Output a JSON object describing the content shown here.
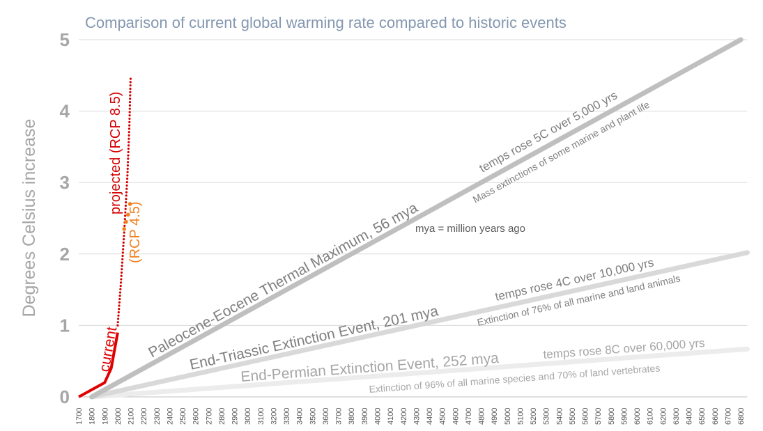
{
  "chart_data": {
    "type": "line",
    "title": "Comparison of current global warming rate compared to historic events",
    "ylabel": "Degrees Celsius increase",
    "xlabel": "",
    "xlim": [
      1700,
      6850
    ],
    "ylim": [
      0,
      5
    ],
    "yticks": [
      0,
      1,
      2,
      3,
      4,
      5
    ],
    "xticks_step": 100,
    "grid": true,
    "colors": {
      "title": "#8497b0",
      "axis_text": "#a6a6a6",
      "current": "#e00000",
      "rcp85": "#d40000",
      "rcp45": "#f08020",
      "paleocene": "#bfbfbf",
      "triassic": "#d9d9d9",
      "permian": "#ececec",
      "event_text": "#7f7f7f",
      "event_text_light": "#a6a6a6"
    },
    "series": [
      {
        "name": "current",
        "style": "solid",
        "x": [
          1700,
          1800,
          1900,
          1950,
          2000
        ],
        "y": [
          0,
          0.1,
          0.2,
          0.4,
          0.9
        ]
      },
      {
        "name": "projected (RCP 8.5)",
        "style": "dotted",
        "x": [
          2000,
          2025,
          2050,
          2075,
          2090,
          2100
        ],
        "y": [
          1.0,
          1.6,
          2.3,
          3.1,
          3.8,
          4.5
        ]
      },
      {
        "name": "(RCP 4.5)",
        "style": "dotted",
        "x": [
          2050,
          2065,
          2080,
          2095
        ],
        "y": [
          2.35,
          2.45,
          2.55,
          2.7
        ]
      },
      {
        "name": "Paleocene-Eocene Thermal Maximum, 56 mya",
        "style": "thick",
        "x": [
          1800,
          6800
        ],
        "y": [
          0,
          5
        ]
      },
      {
        "name": "End-Triassic Extinction Event, 201 mya",
        "style": "thick",
        "x": [
          1800,
          6850
        ],
        "y": [
          0,
          2.02
        ]
      },
      {
        "name": "End-Permian Extinction Event, 252 mya",
        "style": "thick",
        "x": [
          1800,
          6850
        ],
        "y": [
          0,
          0.67
        ]
      }
    ],
    "annotations": {
      "paleocene_rate": "temps rose 5C over 5,000 yrs",
      "paleocene_effect": "Mass extinctions of some marine and plant life",
      "triassic_rate": "temps rose 4C over 10,000 yrs",
      "triassic_effect": "Extinction of 76% of all marine and land animals",
      "permian_rate": "temps rose 8C over 60,000 yrs",
      "permian_effect": "Extinction of 96% of all marine species and 70% of land vertebrates",
      "mya_note": "mya = million years ago"
    }
  }
}
